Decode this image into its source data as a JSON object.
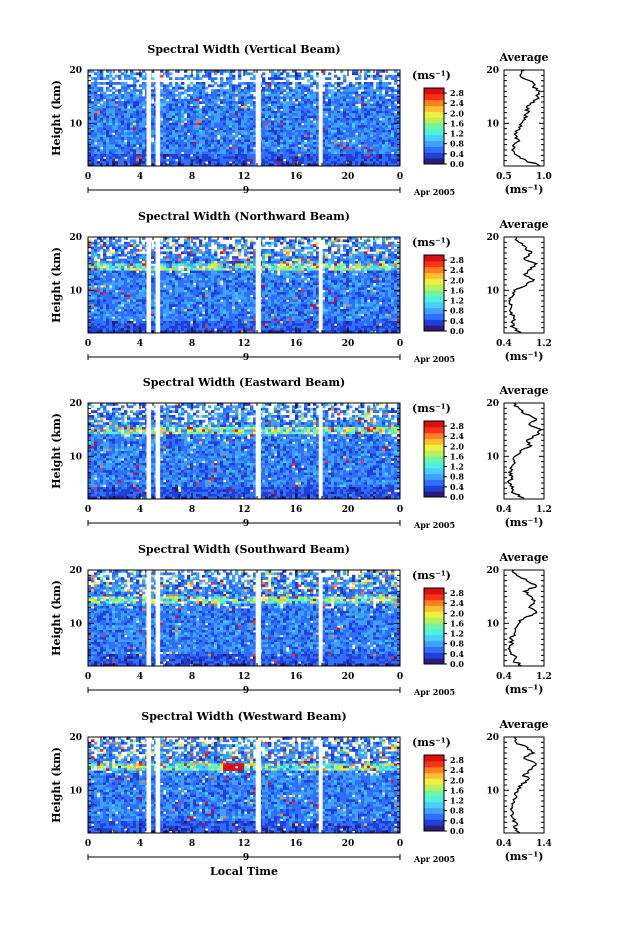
{
  "colors": {
    "colormap": [
      "#2b1b7a",
      "#1f3fd8",
      "#2f6fff",
      "#3fa0ff",
      "#45d0ff",
      "#4ff0e0",
      "#70f5a0",
      "#b8f060",
      "#f0f040",
      "#ffc030",
      "#ff8020",
      "#ff3018",
      "#d81010"
    ],
    "gap": "#ffffff",
    "line": "#000000"
  },
  "xaxis": {
    "ticks": [
      "0",
      "4",
      "8",
      "12",
      "16",
      "20",
      "0"
    ],
    "day_label": "9",
    "month_label": "Apr 2005",
    "title": "Local Time"
  },
  "yaxis": {
    "label": "Height (km)",
    "ticks": [
      "20",
      "10"
    ]
  },
  "colorbar": {
    "unit": "(ms⁻¹)",
    "ticks": [
      "2.8",
      "2.4",
      "2.0",
      "1.6",
      "1.2",
      "0.8",
      "0.4",
      "0.0"
    ]
  },
  "average": {
    "title": "Average",
    "unit": "(ms⁻¹)",
    "yticks": [
      "20",
      "10"
    ]
  },
  "chart_data": [
    {
      "type": "heatmap",
      "title": "Spectral Width (Vertical Beam)",
      "x_range_hours": [
        0,
        24
      ],
      "y_range_km": [
        2,
        20
      ],
      "color_range": [
        0.0,
        3.0
      ],
      "average_xlim": [
        0.5,
        1.0
      ],
      "average_xticks": [
        "0.5",
        "1.0"
      ],
      "average_profile": {
        "height_km": [
          2,
          3,
          4,
          5,
          6,
          7,
          8,
          9,
          10,
          11,
          12,
          13,
          14,
          15,
          16,
          17,
          18,
          19,
          20
        ],
        "value": [
          0.95,
          0.78,
          0.66,
          0.6,
          0.62,
          0.68,
          0.63,
          0.7,
          0.72,
          0.75,
          0.8,
          0.78,
          0.88,
          0.92,
          0.95,
          0.87,
          0.82,
          0.7,
          0.75
        ]
      }
    },
    {
      "type": "heatmap",
      "title": "Spectral Width (Northward Beam)",
      "x_range_hours": [
        0,
        24
      ],
      "y_range_km": [
        2,
        20
      ],
      "color_range": [
        0.0,
        3.0
      ],
      "average_xlim": [
        0.4,
        1.2
      ],
      "average_xticks": [
        "0.4",
        "1.2"
      ],
      "average_profile": {
        "height_km": [
          2,
          3,
          4,
          5,
          6,
          7,
          8,
          9,
          10,
          11,
          12,
          13,
          14,
          15,
          16,
          17,
          18,
          19,
          20
        ],
        "value": [
          0.75,
          0.6,
          0.55,
          0.6,
          0.52,
          0.55,
          0.5,
          0.58,
          0.6,
          0.85,
          1.0,
          0.8,
          0.95,
          1.05,
          0.8,
          0.95,
          0.85,
          0.7,
          0.65
        ]
      }
    },
    {
      "type": "heatmap",
      "title": "Spectral Width (Eastward Beam)",
      "x_range_hours": [
        0,
        24
      ],
      "y_range_km": [
        2,
        20
      ],
      "color_range": [
        0.0,
        3.0
      ],
      "average_xlim": [
        0.4,
        1.2
      ],
      "average_xticks": [
        "0.4",
        "1.2"
      ],
      "average_profile": {
        "height_km": [
          2,
          3,
          4,
          5,
          6,
          7,
          8,
          9,
          10,
          11,
          12,
          13,
          14,
          15,
          16,
          17,
          18,
          19,
          20
        ],
        "value": [
          0.8,
          0.62,
          0.55,
          0.5,
          0.55,
          0.5,
          0.55,
          0.6,
          0.62,
          0.72,
          0.95,
          0.85,
          1.05,
          1.15,
          0.9,
          1.05,
          0.8,
          0.7,
          0.6
        ]
      }
    },
    {
      "type": "heatmap",
      "title": "Spectral Width (Southward Beam)",
      "x_range_hours": [
        0,
        24
      ],
      "y_range_km": [
        2,
        20
      ],
      "color_range": [
        0.0,
        3.0
      ],
      "average_xlim": [
        0.4,
        1.2
      ],
      "average_xticks": [
        "0.4",
        "1.2"
      ],
      "average_profile": {
        "height_km": [
          2,
          3,
          4,
          5,
          6,
          7,
          8,
          9,
          10,
          11,
          12,
          13,
          14,
          15,
          16,
          17,
          18,
          19,
          20
        ],
        "value": [
          0.75,
          0.6,
          0.6,
          0.52,
          0.55,
          0.55,
          0.6,
          0.62,
          0.7,
          0.8,
          1.05,
          0.9,
          1.0,
          0.95,
          0.8,
          1.05,
          0.85,
          0.65,
          0.6
        ]
      }
    },
    {
      "type": "heatmap",
      "title": "Spectral Width (Westward Beam)",
      "x_range_hours": [
        0,
        24
      ],
      "y_range_km": [
        2,
        20
      ],
      "color_range": [
        0.0,
        3.0
      ],
      "average_xlim": [
        0.4,
        1.4
      ],
      "average_xticks": [
        "0.4",
        "1.4"
      ],
      "average_profile": {
        "height_km": [
          2,
          3,
          4,
          5,
          6,
          7,
          8,
          9,
          10,
          11,
          12,
          13,
          14,
          15,
          16,
          17,
          18,
          19,
          20
        ],
        "value": [
          0.8,
          0.65,
          0.7,
          0.6,
          0.62,
          0.6,
          0.65,
          0.7,
          0.75,
          0.85,
          1.0,
          0.9,
          1.1,
          1.2,
          0.9,
          1.15,
          1.0,
          0.7,
          0.65
        ]
      }
    }
  ]
}
